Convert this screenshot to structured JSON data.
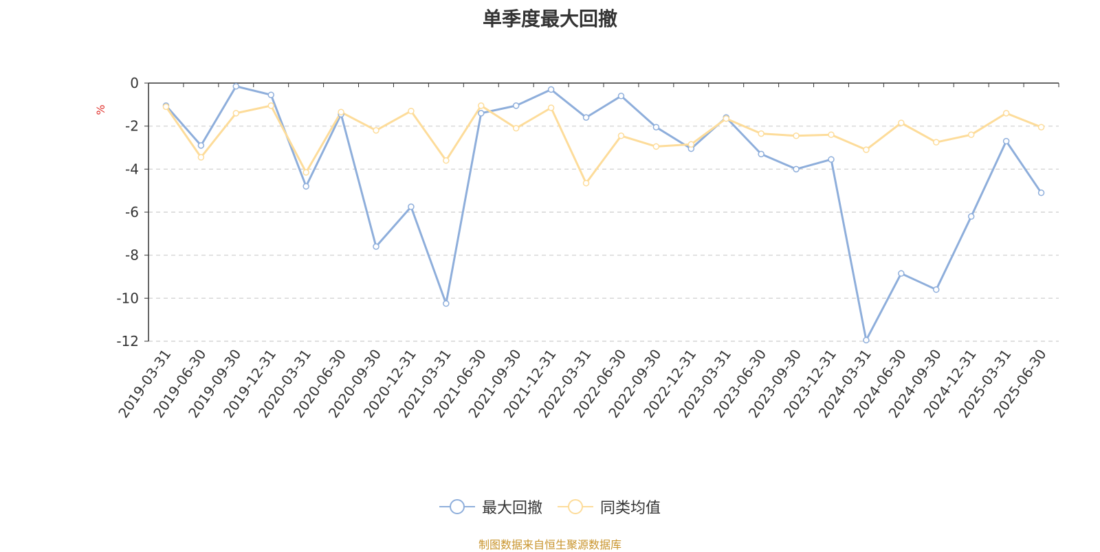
{
  "chart_data": {
    "type": "line",
    "title": "单季度最大回撤",
    "ylabel": "%",
    "ylim": [
      -12,
      0
    ],
    "yticks": [
      0,
      -2,
      -4,
      -6,
      -8,
      -10,
      -12
    ],
    "grid": true,
    "legend_position": "bottom",
    "categories": [
      "2019-03-31",
      "2019-06-30",
      "2019-09-30",
      "2019-12-31",
      "2020-03-31",
      "2020-06-30",
      "2020-09-30",
      "2020-12-31",
      "2021-03-31",
      "2021-06-30",
      "2021-09-30",
      "2021-12-31",
      "2022-03-31",
      "2022-06-30",
      "2022-09-30",
      "2022-12-31",
      "2023-03-31",
      "2023-06-30",
      "2023-09-30",
      "2023-12-31",
      "2024-03-31",
      "2024-06-30",
      "2024-09-30",
      "2024-12-31",
      "2025-03-31",
      "2025-06-30"
    ],
    "series": [
      {
        "name": "最大回撤",
        "color": "#8eaedb",
        "values": [
          -1.05,
          -2.9,
          -0.15,
          -0.55,
          -4.8,
          -1.45,
          -7.6,
          -5.75,
          -10.25,
          -1.4,
          -1.05,
          -0.3,
          -1.6,
          -0.6,
          -2.05,
          -3.05,
          -1.6,
          -3.3,
          -4.0,
          -3.55,
          -11.95,
          -8.85,
          -9.6,
          -6.2,
          -2.7,
          -5.1
        ]
      },
      {
        "name": "同类均值",
        "color": "#fddc9a",
        "values": [
          -1.1,
          -3.45,
          -1.4,
          -1.05,
          -4.15,
          -1.35,
          -2.2,
          -1.3,
          -3.6,
          -1.05,
          -2.1,
          -1.15,
          -4.65,
          -2.45,
          -2.95,
          -2.85,
          -1.65,
          -2.35,
          -2.45,
          -2.4,
          -3.1,
          -1.85,
          -2.75,
          -2.4,
          -1.4,
          -2.05
        ]
      }
    ]
  },
  "source_note": "制图数据来自恒生聚源数据库"
}
